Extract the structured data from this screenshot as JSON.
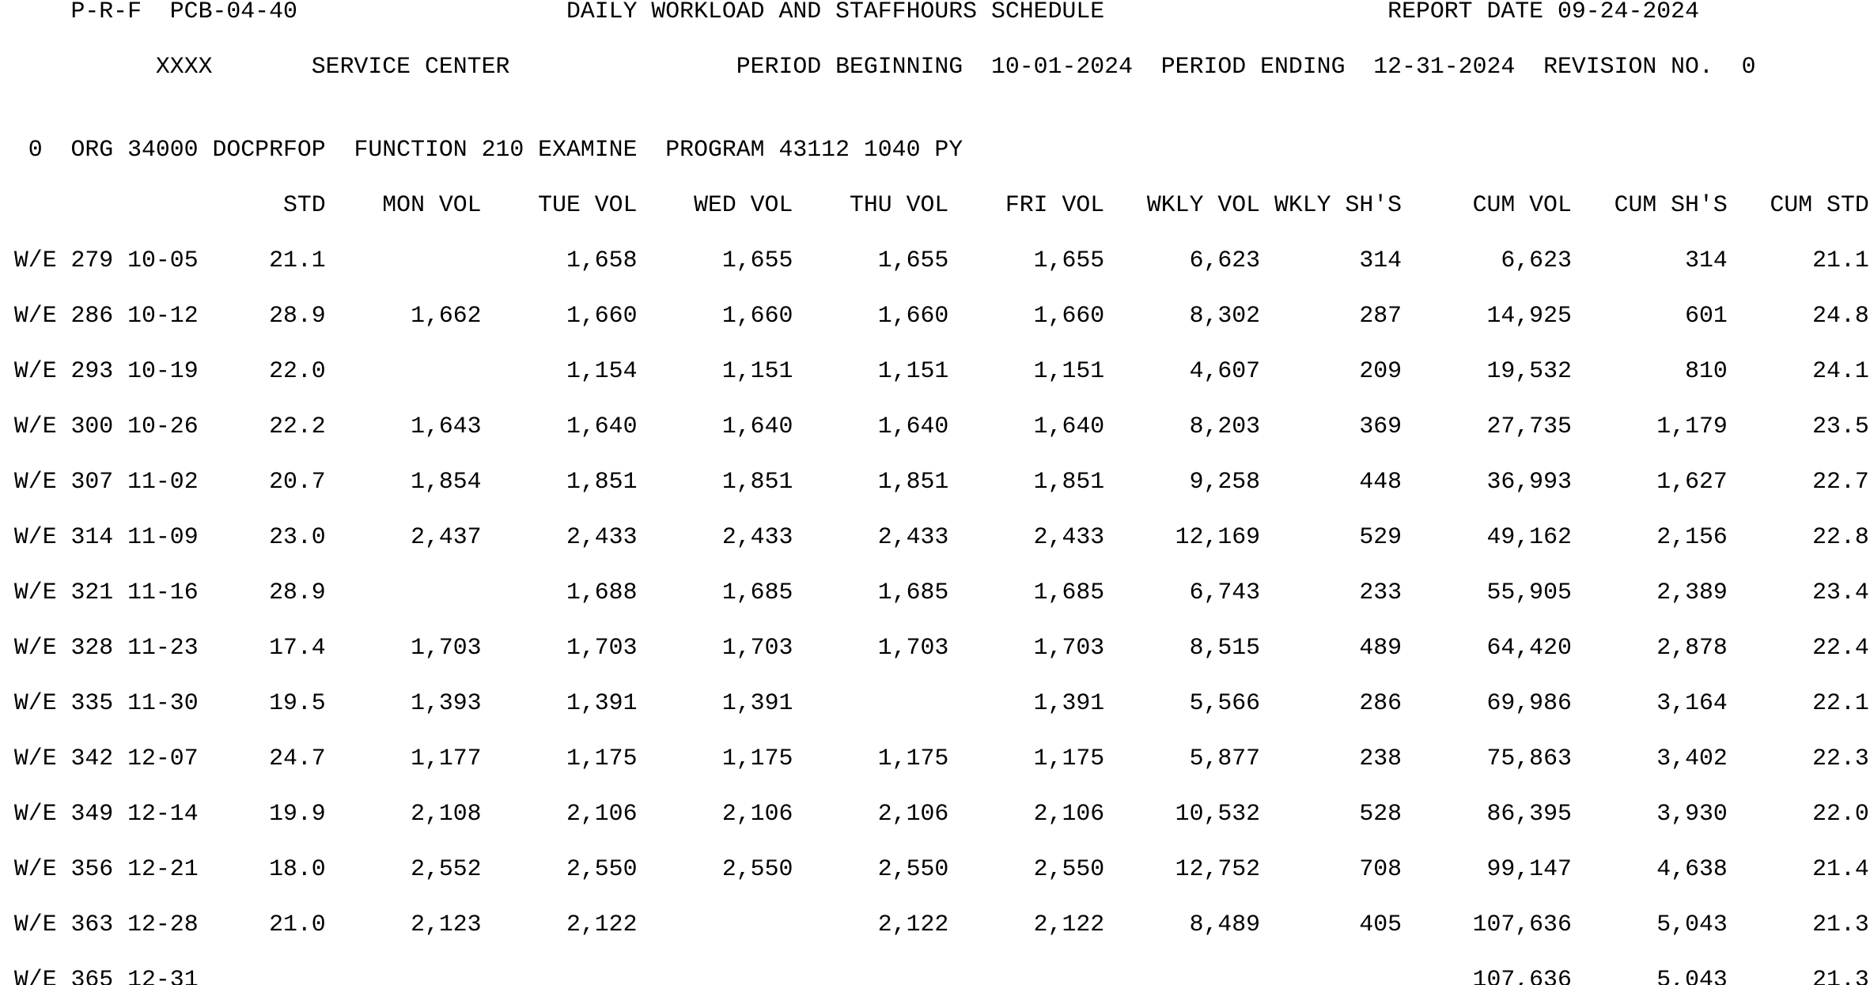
{
  "page": {
    "background": "#ffffff",
    "text_color": "#000000"
  },
  "header_line1": {
    "report_id": "P-R-F  PCB-04-40",
    "title": "DAILY WORKLOAD AND STAFFHOURS SCHEDULE",
    "report_date": "REPORT DATE 09-24-2024"
  },
  "header_line2": {
    "center_code": "XXXX",
    "center_name": "SERVICE CENTER",
    "period_beginning_label": "PERIOD BEGINNING",
    "period_beginning": "10-01-2024",
    "period_ending_label": "PERIOD ENDING",
    "period_ending": "12-31-2024",
    "revision_label": "REVISION NO.",
    "revision": "0"
  },
  "org_line": {
    "carriage_control": "0",
    "org": "ORG 34000 DOCPRFOP",
    "function": "FUNCTION 210 EXAMINE",
    "program": "PROGRAM 43112 1040 PY"
  },
  "columns": [
    {
      "key": "std",
      "label": "STD"
    },
    {
      "key": "mon",
      "label": "MON VOL"
    },
    {
      "key": "tue",
      "label": "TUE VOL"
    },
    {
      "key": "wed",
      "label": "WED VOL"
    },
    {
      "key": "thu",
      "label": "THU VOL"
    },
    {
      "key": "fri",
      "label": "FRI VOL"
    },
    {
      "key": "wkly_vol",
      "label": "WKLY VOL"
    },
    {
      "key": "wkly_shs",
      "label": "WKLY SH'S"
    },
    {
      "key": "cum_vol",
      "label": "CUM VOL"
    },
    {
      "key": "cum_shs",
      "label": "CUM SH'S"
    },
    {
      "key": "cum_std",
      "label": "CUM STD"
    }
  ],
  "rows": [
    {
      "label": "W/E 279 10-05",
      "std": "21.1",
      "mon": "",
      "tue": "1,658",
      "wed": "1,655",
      "thu": "1,655",
      "fri": "1,655",
      "wkly_vol": "6,623",
      "wkly_shs": "314",
      "cum_vol": "6,623",
      "cum_shs": "314",
      "cum_std": "21.1"
    },
    {
      "label": "W/E 286 10-12",
      "std": "28.9",
      "mon": "1,662",
      "tue": "1,660",
      "wed": "1,660",
      "thu": "1,660",
      "fri": "1,660",
      "wkly_vol": "8,302",
      "wkly_shs": "287",
      "cum_vol": "14,925",
      "cum_shs": "601",
      "cum_std": "24.8"
    },
    {
      "label": "W/E 293 10-19",
      "std": "22.0",
      "mon": "",
      "tue": "1,154",
      "wed": "1,151",
      "thu": "1,151",
      "fri": "1,151",
      "wkly_vol": "4,607",
      "wkly_shs": "209",
      "cum_vol": "19,532",
      "cum_shs": "810",
      "cum_std": "24.1"
    },
    {
      "label": "W/E 300 10-26",
      "std": "22.2",
      "mon": "1,643",
      "tue": "1,640",
      "wed": "1,640",
      "thu": "1,640",
      "fri": "1,640",
      "wkly_vol": "8,203",
      "wkly_shs": "369",
      "cum_vol": "27,735",
      "cum_shs": "1,179",
      "cum_std": "23.5"
    },
    {
      "label": "W/E 307 11-02",
      "std": "20.7",
      "mon": "1,854",
      "tue": "1,851",
      "wed": "1,851",
      "thu": "1,851",
      "fri": "1,851",
      "wkly_vol": "9,258",
      "wkly_shs": "448",
      "cum_vol": "36,993",
      "cum_shs": "1,627",
      "cum_std": "22.7"
    },
    {
      "label": "W/E 314 11-09",
      "std": "23.0",
      "mon": "2,437",
      "tue": "2,433",
      "wed": "2,433",
      "thu": "2,433",
      "fri": "2,433",
      "wkly_vol": "12,169",
      "wkly_shs": "529",
      "cum_vol": "49,162",
      "cum_shs": "2,156",
      "cum_std": "22.8"
    },
    {
      "label": "W/E 321 11-16",
      "std": "28.9",
      "mon": "",
      "tue": "1,688",
      "wed": "1,685",
      "thu": "1,685",
      "fri": "1,685",
      "wkly_vol": "6,743",
      "wkly_shs": "233",
      "cum_vol": "55,905",
      "cum_shs": "2,389",
      "cum_std": "23.4"
    },
    {
      "label": "W/E 328 11-23",
      "std": "17.4",
      "mon": "1,703",
      "tue": "1,703",
      "wed": "1,703",
      "thu": "1,703",
      "fri": "1,703",
      "wkly_vol": "8,515",
      "wkly_shs": "489",
      "cum_vol": "64,420",
      "cum_shs": "2,878",
      "cum_std": "22.4"
    },
    {
      "label": "W/E 335 11-30",
      "std": "19.5",
      "mon": "1,393",
      "tue": "1,391",
      "wed": "1,391",
      "thu": "",
      "fri": "1,391",
      "wkly_vol": "5,566",
      "wkly_shs": "286",
      "cum_vol": "69,986",
      "cum_shs": "3,164",
      "cum_std": "22.1"
    },
    {
      "label": "W/E 342 12-07",
      "std": "24.7",
      "mon": "1,177",
      "tue": "1,175",
      "wed": "1,175",
      "thu": "1,175",
      "fri": "1,175",
      "wkly_vol": "5,877",
      "wkly_shs": "238",
      "cum_vol": "75,863",
      "cum_shs": "3,402",
      "cum_std": "22.3"
    },
    {
      "label": "W/E 349 12-14",
      "std": "19.9",
      "mon": "2,108",
      "tue": "2,106",
      "wed": "2,106",
      "thu": "2,106",
      "fri": "2,106",
      "wkly_vol": "10,532",
      "wkly_shs": "528",
      "cum_vol": "86,395",
      "cum_shs": "3,930",
      "cum_std": "22.0"
    },
    {
      "label": "W/E 356 12-21",
      "std": "18.0",
      "mon": "2,552",
      "tue": "2,550",
      "wed": "2,550",
      "thu": "2,550",
      "fri": "2,550",
      "wkly_vol": "12,752",
      "wkly_shs": "708",
      "cum_vol": "99,147",
      "cum_shs": "4,638",
      "cum_std": "21.4"
    },
    {
      "label": "W/E 363 12-28",
      "std": "21.0",
      "mon": "2,123",
      "tue": "2,122",
      "wed": "",
      "thu": "2,122",
      "fri": "2,122",
      "wkly_vol": "8,489",
      "wkly_shs": "405",
      "cum_vol": "107,636",
      "cum_shs": "5,043",
      "cum_std": "21.3"
    },
    {
      "label": "W/E 365 12-31",
      "std": "",
      "mon": "",
      "tue": "",
      "wed": "",
      "thu": "",
      "fri": "",
      "wkly_vol": "",
      "wkly_shs": "",
      "cum_vol": "107,636",
      "cum_shs": "5,043",
      "cum_std": "21.3"
    }
  ]
}
